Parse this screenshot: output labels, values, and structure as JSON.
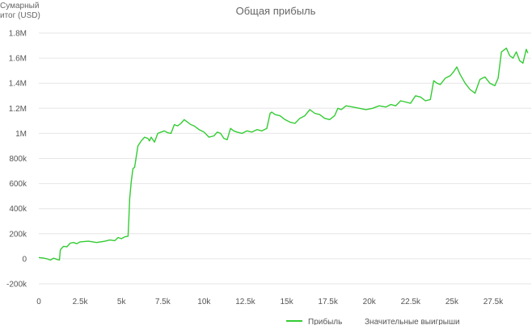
{
  "chart_data": {
    "type": "line",
    "title": "Общая прибыль",
    "ylabel_lines": [
      "Сумарный",
      "итог (USD)"
    ],
    "xlim": [
      0,
      29800
    ],
    "ylim": [
      -200000,
      1800000
    ],
    "x_ticks": [
      0,
      2500,
      5000,
      7500,
      10000,
      12500,
      15000,
      17500,
      20000,
      22500,
      25000,
      27500
    ],
    "x_tick_labels": [
      "0",
      "2.5k",
      "5k",
      "7.5k",
      "10k",
      "12.5k",
      "15k",
      "17.5k",
      "20k",
      "22.5k",
      "25k",
      "27.5k"
    ],
    "y_ticks": [
      -200000,
      0,
      200000,
      400000,
      600000,
      800000,
      1000000,
      1200000,
      1400000,
      1600000,
      1800000
    ],
    "y_tick_labels": [
      "-200k",
      "0",
      "200k",
      "400k",
      "600k",
      "800k",
      "1M",
      "1.2M",
      "1.4M",
      "1.6M",
      "1.8M"
    ],
    "grid": true,
    "legend_position": "bottom-right",
    "colors": {
      "profit": "#33cc33",
      "highlight": "#ffffff"
    },
    "series": [
      {
        "name": "Прибыль",
        "x": [
          0,
          300,
          500,
          700,
          900,
          1100,
          1250,
          1300,
          1350,
          1500,
          1700,
          1900,
          2100,
          2300,
          2500,
          3000,
          3500,
          4000,
          4300,
          4600,
          4800,
          5000,
          5200,
          5400,
          5450,
          5500,
          5600,
          5700,
          5800,
          6000,
          6200,
          6400,
          6600,
          6700,
          6800,
          7000,
          7200,
          7400,
          7600,
          7800,
          8000,
          8200,
          8400,
          8600,
          8800,
          9000,
          9200,
          9400,
          9700,
          10000,
          10300,
          10600,
          10800,
          11000,
          11200,
          11400,
          11600,
          11800,
          12000,
          12300,
          12600,
          12900,
          13200,
          13500,
          13800,
          14000,
          14100,
          14300,
          14600,
          14900,
          15200,
          15500,
          15800,
          16100,
          16400,
          16700,
          17000,
          17300,
          17600,
          17900,
          18100,
          18300,
          18600,
          19000,
          19400,
          19800,
          20200,
          20600,
          21000,
          21300,
          21600,
          21900,
          22200,
          22500,
          22800,
          23100,
          23400,
          23700,
          23900,
          24100,
          24300,
          24600,
          24900,
          25100,
          25300,
          25500,
          25800,
          26100,
          26400,
          26700,
          27000,
          27300,
          27600,
          27800,
          28000,
          28100,
          28300,
          28500,
          28700,
          28900,
          29100,
          29300,
          29500,
          29600
        ],
        "y": [
          10000,
          5000,
          0,
          -10000,
          5000,
          -5000,
          -10000,
          70000,
          80000,
          100000,
          95000,
          125000,
          130000,
          120000,
          135000,
          140000,
          130000,
          140000,
          150000,
          145000,
          170000,
          160000,
          175000,
          180000,
          320000,
          480000,
          620000,
          720000,
          730000,
          900000,
          940000,
          970000,
          960000,
          940000,
          970000,
          930000,
          1000000,
          1010000,
          1020000,
          1005000,
          1000000,
          1070000,
          1060000,
          1080000,
          1110000,
          1090000,
          1070000,
          1060000,
          1030000,
          1010000,
          970000,
          980000,
          1010000,
          1000000,
          960000,
          950000,
          1040000,
          1020000,
          1010000,
          1000000,
          1020000,
          1010000,
          1030000,
          1020000,
          1040000,
          1160000,
          1170000,
          1150000,
          1140000,
          1110000,
          1090000,
          1080000,
          1120000,
          1140000,
          1190000,
          1160000,
          1150000,
          1120000,
          1110000,
          1140000,
          1200000,
          1190000,
          1220000,
          1210000,
          1200000,
          1190000,
          1200000,
          1220000,
          1210000,
          1230000,
          1220000,
          1260000,
          1250000,
          1240000,
          1300000,
          1290000,
          1260000,
          1270000,
          1420000,
          1400000,
          1390000,
          1440000,
          1460000,
          1490000,
          1530000,
          1470000,
          1400000,
          1350000,
          1320000,
          1430000,
          1450000,
          1400000,
          1380000,
          1440000,
          1650000,
          1660000,
          1680000,
          1620000,
          1600000,
          1650000,
          1580000,
          1560000,
          1670000,
          1640000
        ]
      }
    ],
    "legend": [
      {
        "label": "Прибыль",
        "swatch": "line"
      },
      {
        "label": "Значительные выигрыши",
        "swatch": "none"
      }
    ]
  }
}
